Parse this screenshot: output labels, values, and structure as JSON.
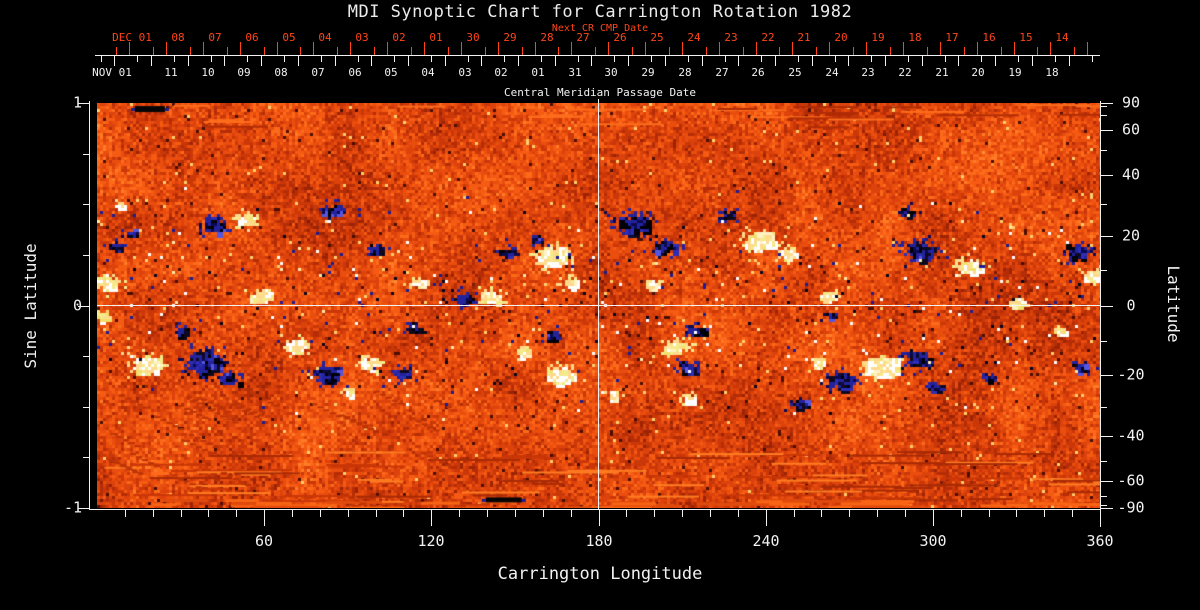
{
  "title": "MDI Synoptic Chart for Carrington Rotation 1982",
  "colors": {
    "background": "#000000",
    "axis": "#f2f2f2",
    "title_text": "#ebebeb",
    "accent_red": "#ff4518"
  },
  "top_axes": {
    "next_cr": {
      "label": "Next CR CMP Date",
      "month_label": "DEC 01",
      "day_labels": [
        "08",
        "07",
        "06",
        "05",
        "04",
        "03",
        "02",
        "01",
        "30",
        "29",
        "28",
        "27",
        "26",
        "25",
        "24",
        "23",
        "22",
        "21",
        "20",
        "19",
        "18",
        "17",
        "16",
        "15",
        "14"
      ]
    },
    "current_cr": {
      "label": "Central Meridian Passage Date",
      "month_label": "NOV 01",
      "day_labels": [
        "11",
        "10",
        "09",
        "08",
        "07",
        "06",
        "05",
        "04",
        "03",
        "02",
        "01",
        "31",
        "30",
        "29",
        "28",
        "27",
        "26",
        "25",
        "24",
        "23",
        "22",
        "21",
        "20",
        "19",
        "18"
      ]
    }
  },
  "left_axis": {
    "label": "Sine Latitude",
    "tick_values": [
      1,
      0,
      -1
    ],
    "tick_labels": [
      "1",
      "0",
      "-1"
    ],
    "minor_tick_values": [
      0.75,
      0.5,
      0.25,
      -0.25,
      -0.5,
      -0.75
    ],
    "range": [
      -1,
      1
    ]
  },
  "right_axis": {
    "label": "Latitude",
    "tick_values": [
      90,
      60,
      40,
      20,
      0,
      -20,
      -40,
      -60,
      -90
    ],
    "minor_tick_values": [
      80,
      70,
      50,
      30,
      10,
      -10,
      -30,
      -50,
      -70,
      -80
    ]
  },
  "bottom_axis": {
    "label": "Carrington Longitude",
    "tick_values": [
      60,
      120,
      180,
      240,
      300,
      360
    ],
    "minor_step": 10,
    "range": [
      0,
      360
    ]
  },
  "chart_data": {
    "type": "heatmap",
    "title": "MDI Synoptic Chart for Carrington Rotation 1982",
    "xlabel": "Carrington Longitude",
    "xlim": [
      0,
      360
    ],
    "ylabel": "Sine Latitude",
    "ylim": [
      -1,
      1
    ],
    "y2label": "Latitude",
    "y2lim": [
      -90,
      90
    ],
    "crosshair": {
      "longitude": 180,
      "sine_latitude": 0
    },
    "palette": {
      "background": [
        "#5a1103",
        "#7c1a04",
        "#9c2405",
        "#b52d07",
        "#ca3708",
        "#dc420b",
        "#ea4e0e",
        "#f55b12",
        "#fd6a1a",
        "#ff7c26",
        "#ff9036",
        "#ffa94c"
      ],
      "dark_speck": "#4a0e02",
      "bright_speck": "#ffcf6e",
      "negative_core": [
        "#000006",
        "#0d0a20"
      ],
      "negative_fringe": [
        "#2d2db8",
        "#5555e0",
        "#23239e",
        "#0a0a50"
      ],
      "positive_core": [
        "#ffffff",
        "#fff2c4",
        "#efe06a"
      ],
      "positive_fringe": [
        "#ffd98c",
        "#f5ea8a"
      ]
    },
    "active_regions": [
      {
        "lon": 3,
        "slat": 0.12,
        "pol": "+",
        "r": 9,
        "n": 40
      },
      {
        "lon": 6,
        "slat": 0.3,
        "pol": "-",
        "r": 5,
        "n": 14
      },
      {
        "lon": 8,
        "slat": 0.5,
        "pol": "+",
        "r": 4,
        "n": 10
      },
      {
        "lon": 12,
        "slat": 0.36,
        "pol": "-",
        "r": 5,
        "n": 12
      },
      {
        "lon": 42,
        "slat": 0.4,
        "pol": "-",
        "r": 9,
        "n": 45
      },
      {
        "lon": 52,
        "slat": 0.43,
        "pol": "+",
        "r": 8,
        "n": 32
      },
      {
        "lon": 58,
        "slat": 0.05,
        "pol": "+",
        "r": 8,
        "n": 34
      },
      {
        "lon": 85,
        "slat": 0.48,
        "pol": "-",
        "r": 9,
        "n": 22
      },
      {
        "lon": 100,
        "slat": 0.28,
        "pol": "-",
        "r": 6,
        "n": 15
      },
      {
        "lon": 115,
        "slat": 0.12,
        "pol": "+",
        "r": 5,
        "n": 12
      },
      {
        "lon": 131,
        "slat": 0.04,
        "pol": "-",
        "r": 7,
        "n": 30
      },
      {
        "lon": 141,
        "slat": 0.05,
        "pol": "+",
        "r": 8,
        "n": 34
      },
      {
        "lon": 147,
        "slat": 0.27,
        "pol": "-",
        "r": 6,
        "n": 16
      },
      {
        "lon": 163,
        "slat": 0.25,
        "pol": "+",
        "r": 12,
        "n": 60
      },
      {
        "lon": 170,
        "slat": 0.12,
        "pol": "+",
        "r": 7,
        "n": 22
      },
      {
        "lon": 157,
        "slat": 0.33,
        "pol": "-",
        "r": 5,
        "n": 12
      },
      {
        "lon": 192,
        "slat": 0.42,
        "pol": "-",
        "r": 12,
        "n": 60
      },
      {
        "lon": 203,
        "slat": 0.3,
        "pol": "-",
        "r": 9,
        "n": 35
      },
      {
        "lon": 199,
        "slat": 0.11,
        "pol": "+",
        "r": 6,
        "n": 18
      },
      {
        "lon": 226,
        "slat": 0.45,
        "pol": "-",
        "r": 6,
        "n": 14
      },
      {
        "lon": 237,
        "slat": 0.33,
        "pol": "+",
        "r": 11,
        "n": 50
      },
      {
        "lon": 247,
        "slat": 0.26,
        "pol": "+",
        "r": 7,
        "n": 20
      },
      {
        "lon": 262,
        "slat": 0.05,
        "pol": "+",
        "r": 7,
        "n": 24
      },
      {
        "lon": 263,
        "slat": -0.05,
        "pol": "-",
        "r": 4,
        "n": 8
      },
      {
        "lon": 295,
        "slat": 0.28,
        "pol": "-",
        "r": 11,
        "n": 55
      },
      {
        "lon": 290,
        "slat": 0.47,
        "pol": "-",
        "r": 6,
        "n": 14
      },
      {
        "lon": 313,
        "slat": 0.2,
        "pol": "+",
        "r": 9,
        "n": 40
      },
      {
        "lon": 330,
        "slat": 0.02,
        "pol": "+",
        "r": 6,
        "n": 20
      },
      {
        "lon": 352,
        "slat": 0.27,
        "pol": "-",
        "r": 9,
        "n": 40
      },
      {
        "lon": 358,
        "slat": 0.15,
        "pol": "+",
        "r": 8,
        "n": 40
      },
      {
        "lon": 2,
        "slat": -0.05,
        "pol": "+",
        "r": 5,
        "n": 14
      },
      {
        "lon": 17,
        "slat": -0.28,
        "pol": "+",
        "r": 11,
        "n": 55
      },
      {
        "lon": 38,
        "slat": -0.27,
        "pol": "-",
        "r": 13,
        "n": 85
      },
      {
        "lon": 47,
        "slat": -0.35,
        "pol": "-",
        "r": 8,
        "n": 28
      },
      {
        "lon": 30,
        "slat": -0.12,
        "pol": "-",
        "r": 5,
        "n": 12
      },
      {
        "lon": 71,
        "slat": -0.2,
        "pol": "+",
        "r": 9,
        "n": 38
      },
      {
        "lon": 81,
        "slat": -0.33,
        "pol": "-",
        "r": 10,
        "n": 45
      },
      {
        "lon": 90,
        "slat": -0.42,
        "pol": "+",
        "r": 5,
        "n": 12
      },
      {
        "lon": 98,
        "slat": -0.28,
        "pol": "+",
        "r": 8,
        "n": 30
      },
      {
        "lon": 109,
        "slat": -0.33,
        "pol": "-",
        "r": 7,
        "n": 22
      },
      {
        "lon": 113,
        "slat": -0.1,
        "pol": "-",
        "r": 6,
        "n": 14
      },
      {
        "lon": 152,
        "slat": -0.22,
        "pol": "+",
        "r": 6,
        "n": 16
      },
      {
        "lon": 166,
        "slat": -0.33,
        "pol": "+",
        "r": 10,
        "n": 45
      },
      {
        "lon": 163,
        "slat": -0.14,
        "pol": "-",
        "r": 6,
        "n": 14
      },
      {
        "lon": 185,
        "slat": -0.44,
        "pol": "+",
        "r": 5,
        "n": 12
      },
      {
        "lon": 207,
        "slat": -0.2,
        "pol": "+",
        "r": 9,
        "n": 40
      },
      {
        "lon": 211,
        "slat": -0.45,
        "pol": "+",
        "r": 6,
        "n": 16
      },
      {
        "lon": 214,
        "slat": -0.12,
        "pol": "-",
        "r": 7,
        "n": 20
      },
      {
        "lon": 212,
        "slat": -0.3,
        "pol": "-",
        "r": 8,
        "n": 28
      },
      {
        "lon": 252,
        "slat": -0.48,
        "pol": "-",
        "r": 6,
        "n": 14
      },
      {
        "lon": 258,
        "slat": -0.28,
        "pol": "+",
        "r": 6,
        "n": 16
      },
      {
        "lon": 267,
        "slat": -0.36,
        "pol": "-",
        "r": 10,
        "n": 50
      },
      {
        "lon": 282,
        "slat": -0.3,
        "pol": "+",
        "r": 13,
        "n": 70
      },
      {
        "lon": 294,
        "slat": -0.26,
        "pol": "-",
        "r": 9,
        "n": 45
      },
      {
        "lon": 300,
        "slat": -0.4,
        "pol": "-",
        "r": 6,
        "n": 16
      },
      {
        "lon": 320,
        "slat": -0.35,
        "pol": "-",
        "r": 5,
        "n": 12
      },
      {
        "lon": 345,
        "slat": -0.12,
        "pol": "+",
        "r": 5,
        "n": 12
      },
      {
        "lon": 352,
        "slat": -0.3,
        "pol": "-",
        "r": 6,
        "n": 14
      }
    ],
    "edge_smudges": [
      {
        "lon": 19,
        "slat": 0.97,
        "w": 30,
        "h": 6
      },
      {
        "lon": 146,
        "slat": -0.96,
        "w": 36,
        "h": 5
      }
    ],
    "speckle": {
      "count": 380
    }
  }
}
